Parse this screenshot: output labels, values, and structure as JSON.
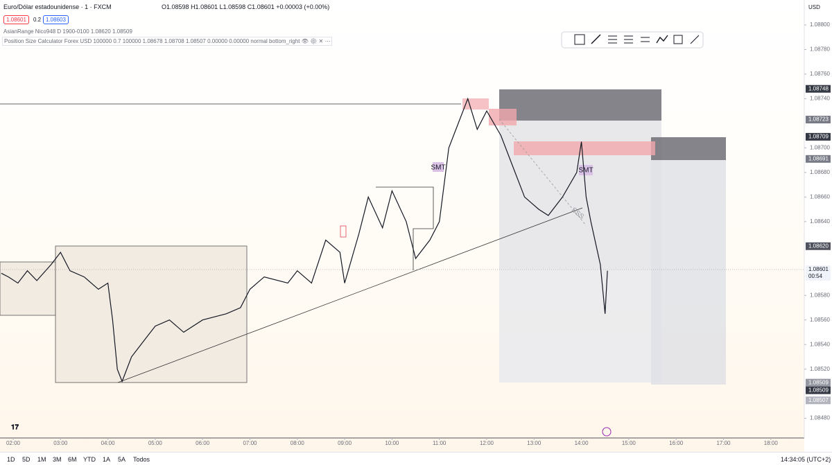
{
  "header": {
    "symbol": "Euro/Dólar estadounidense · 1 · FXCM",
    "open": "O1.08598",
    "high": "H1.08601",
    "low": "L1.08598",
    "close": "C1.08601",
    "change": "+0.00003 (+0.00%)",
    "sell": "1.08601",
    "spread": "0.2",
    "buy": "1.08603",
    "currency": "USD"
  },
  "indicators": [
    "AsianRange Nico948 D 1900-0100  1.08620  1.08509",
    "Position Size Calculator Forex USD 100000 0.7 100000 1.08678 1.08708 1.08507 0.00000 0.00000 normal bottom_right"
  ],
  "annotations": [
    "SMT",
    "SMT",
    "SSS"
  ],
  "price_axis": {
    "ylim": [
      1.08464,
      1.08809
    ],
    "ticks": [
      {
        "value": 1.088,
        "label": "1.08800"
      },
      {
        "value": 1.0878,
        "label": "1.08780"
      },
      {
        "value": 1.0876,
        "label": "1.08760"
      },
      {
        "value": 1.0874,
        "label": "1.08740"
      },
      {
        "value": 1.087,
        "label": "1.08700"
      },
      {
        "value": 1.0868,
        "label": "1.08680"
      },
      {
        "value": 1.0866,
        "label": "1.08660"
      },
      {
        "value": 1.0864,
        "label": "1.08640"
      },
      {
        "value": 1.0858,
        "label": "1.08580"
      },
      {
        "value": 1.0856,
        "label": "1.08560"
      },
      {
        "value": 1.0854,
        "label": "1.08540"
      },
      {
        "value": 1.0852,
        "label": "1.08520"
      },
      {
        "value": 1.0848,
        "label": "1.08480"
      }
    ],
    "markers": [
      {
        "value": 1.08748,
        "label": "1.08748",
        "color": "#363a45"
      },
      {
        "value": 1.08723,
        "label": "1.08723",
        "color": "#787b86"
      },
      {
        "value": 1.08709,
        "label": "1.08709",
        "color": "#363a45"
      },
      {
        "value": 1.08691,
        "label": "1.08691",
        "color": "#787b86"
      },
      {
        "value": 1.0862,
        "label": "1.08620",
        "color": "#50535e"
      },
      {
        "value": 1.08509,
        "label": "1.08509",
        "color": "#9598a1"
      },
      {
        "value": 1.08509,
        "label": "1.08509",
        "color": "#363a45"
      },
      {
        "value": 1.08507,
        "label": "1.08507",
        "color": "#b2b5be"
      }
    ],
    "last": {
      "value": 1.08601,
      "label": "1.08601",
      "countdown": "00:54"
    }
  },
  "time_axis": {
    "xlim": [
      1.722,
      18.706
    ],
    "ticks": [
      {
        "value": 2,
        "label": "02:00"
      },
      {
        "value": 3,
        "label": "03:00"
      },
      {
        "value": 4,
        "label": "04:00"
      },
      {
        "value": 5,
        "label": "05:00"
      },
      {
        "value": 6,
        "label": "06:00"
      },
      {
        "value": 7,
        "label": "07:00"
      },
      {
        "value": 8,
        "label": "08:00"
      },
      {
        "value": 9,
        "label": "09:00"
      },
      {
        "value": 10,
        "label": "10:00"
      },
      {
        "value": 11,
        "label": "11:00"
      },
      {
        "value": 12,
        "label": "12:00"
      },
      {
        "value": 13,
        "label": "13:00"
      },
      {
        "value": 14,
        "label": "14:00"
      },
      {
        "value": 15,
        "label": "15:00"
      },
      {
        "value": 16,
        "label": "16:00"
      },
      {
        "value": 17,
        "label": "17:00"
      },
      {
        "value": 18,
        "label": "18:00"
      }
    ]
  },
  "price_path": {
    "hours": [
      1.75,
      1.9,
      2.1,
      2.3,
      2.5,
      2.8,
      3.0,
      3.2,
      3.5,
      3.8,
      4.0,
      4.1,
      4.2,
      4.3,
      4.5,
      4.8,
      5.0,
      5.3,
      5.6,
      6.0,
      6.5,
      6.8,
      7.0,
      7.3,
      7.8,
      8.0,
      8.3,
      8.6,
      8.9,
      9.0,
      9.3,
      9.5,
      9.8,
      10.0,
      10.3,
      10.5,
      10.8,
      11.0,
      11.2,
      11.4,
      11.6,
      11.8,
      12.0,
      12.3,
      12.5,
      12.8,
      13.1,
      13.3,
      13.6,
      13.9,
      14.0,
      14.1,
      14.2,
      14.4,
      14.5,
      14.55
    ],
    "prices": [
      1.08598,
      1.08595,
      1.0859,
      1.086,
      1.08592,
      1.08605,
      1.08615,
      1.086,
      1.08595,
      1.08585,
      1.0859,
      1.0856,
      1.0852,
      1.0851,
      1.0853,
      1.08545,
      1.08555,
      1.0856,
      1.0855,
      1.0856,
      1.08565,
      1.0857,
      1.08585,
      1.08595,
      1.0859,
      1.086,
      1.0859,
      1.08625,
      1.08615,
      1.0859,
      1.0863,
      1.0866,
      1.08635,
      1.08665,
      1.0864,
      1.0861,
      1.08625,
      1.0864,
      1.087,
      1.0872,
      1.0874,
      1.08715,
      1.0873,
      1.0871,
      1.0869,
      1.0866,
      1.0865,
      1.08645,
      1.0866,
      1.0868,
      1.08705,
      1.0866,
      1.0864,
      1.08605,
      1.08565,
      1.086
    ]
  },
  "bottom_bar": {
    "ranges": [
      "1D",
      "5D",
      "1M",
      "3M",
      "6M",
      "YTD",
      "1A",
      "5A",
      "Todos"
    ],
    "clock": "14:34:05 (UTC+2)"
  }
}
